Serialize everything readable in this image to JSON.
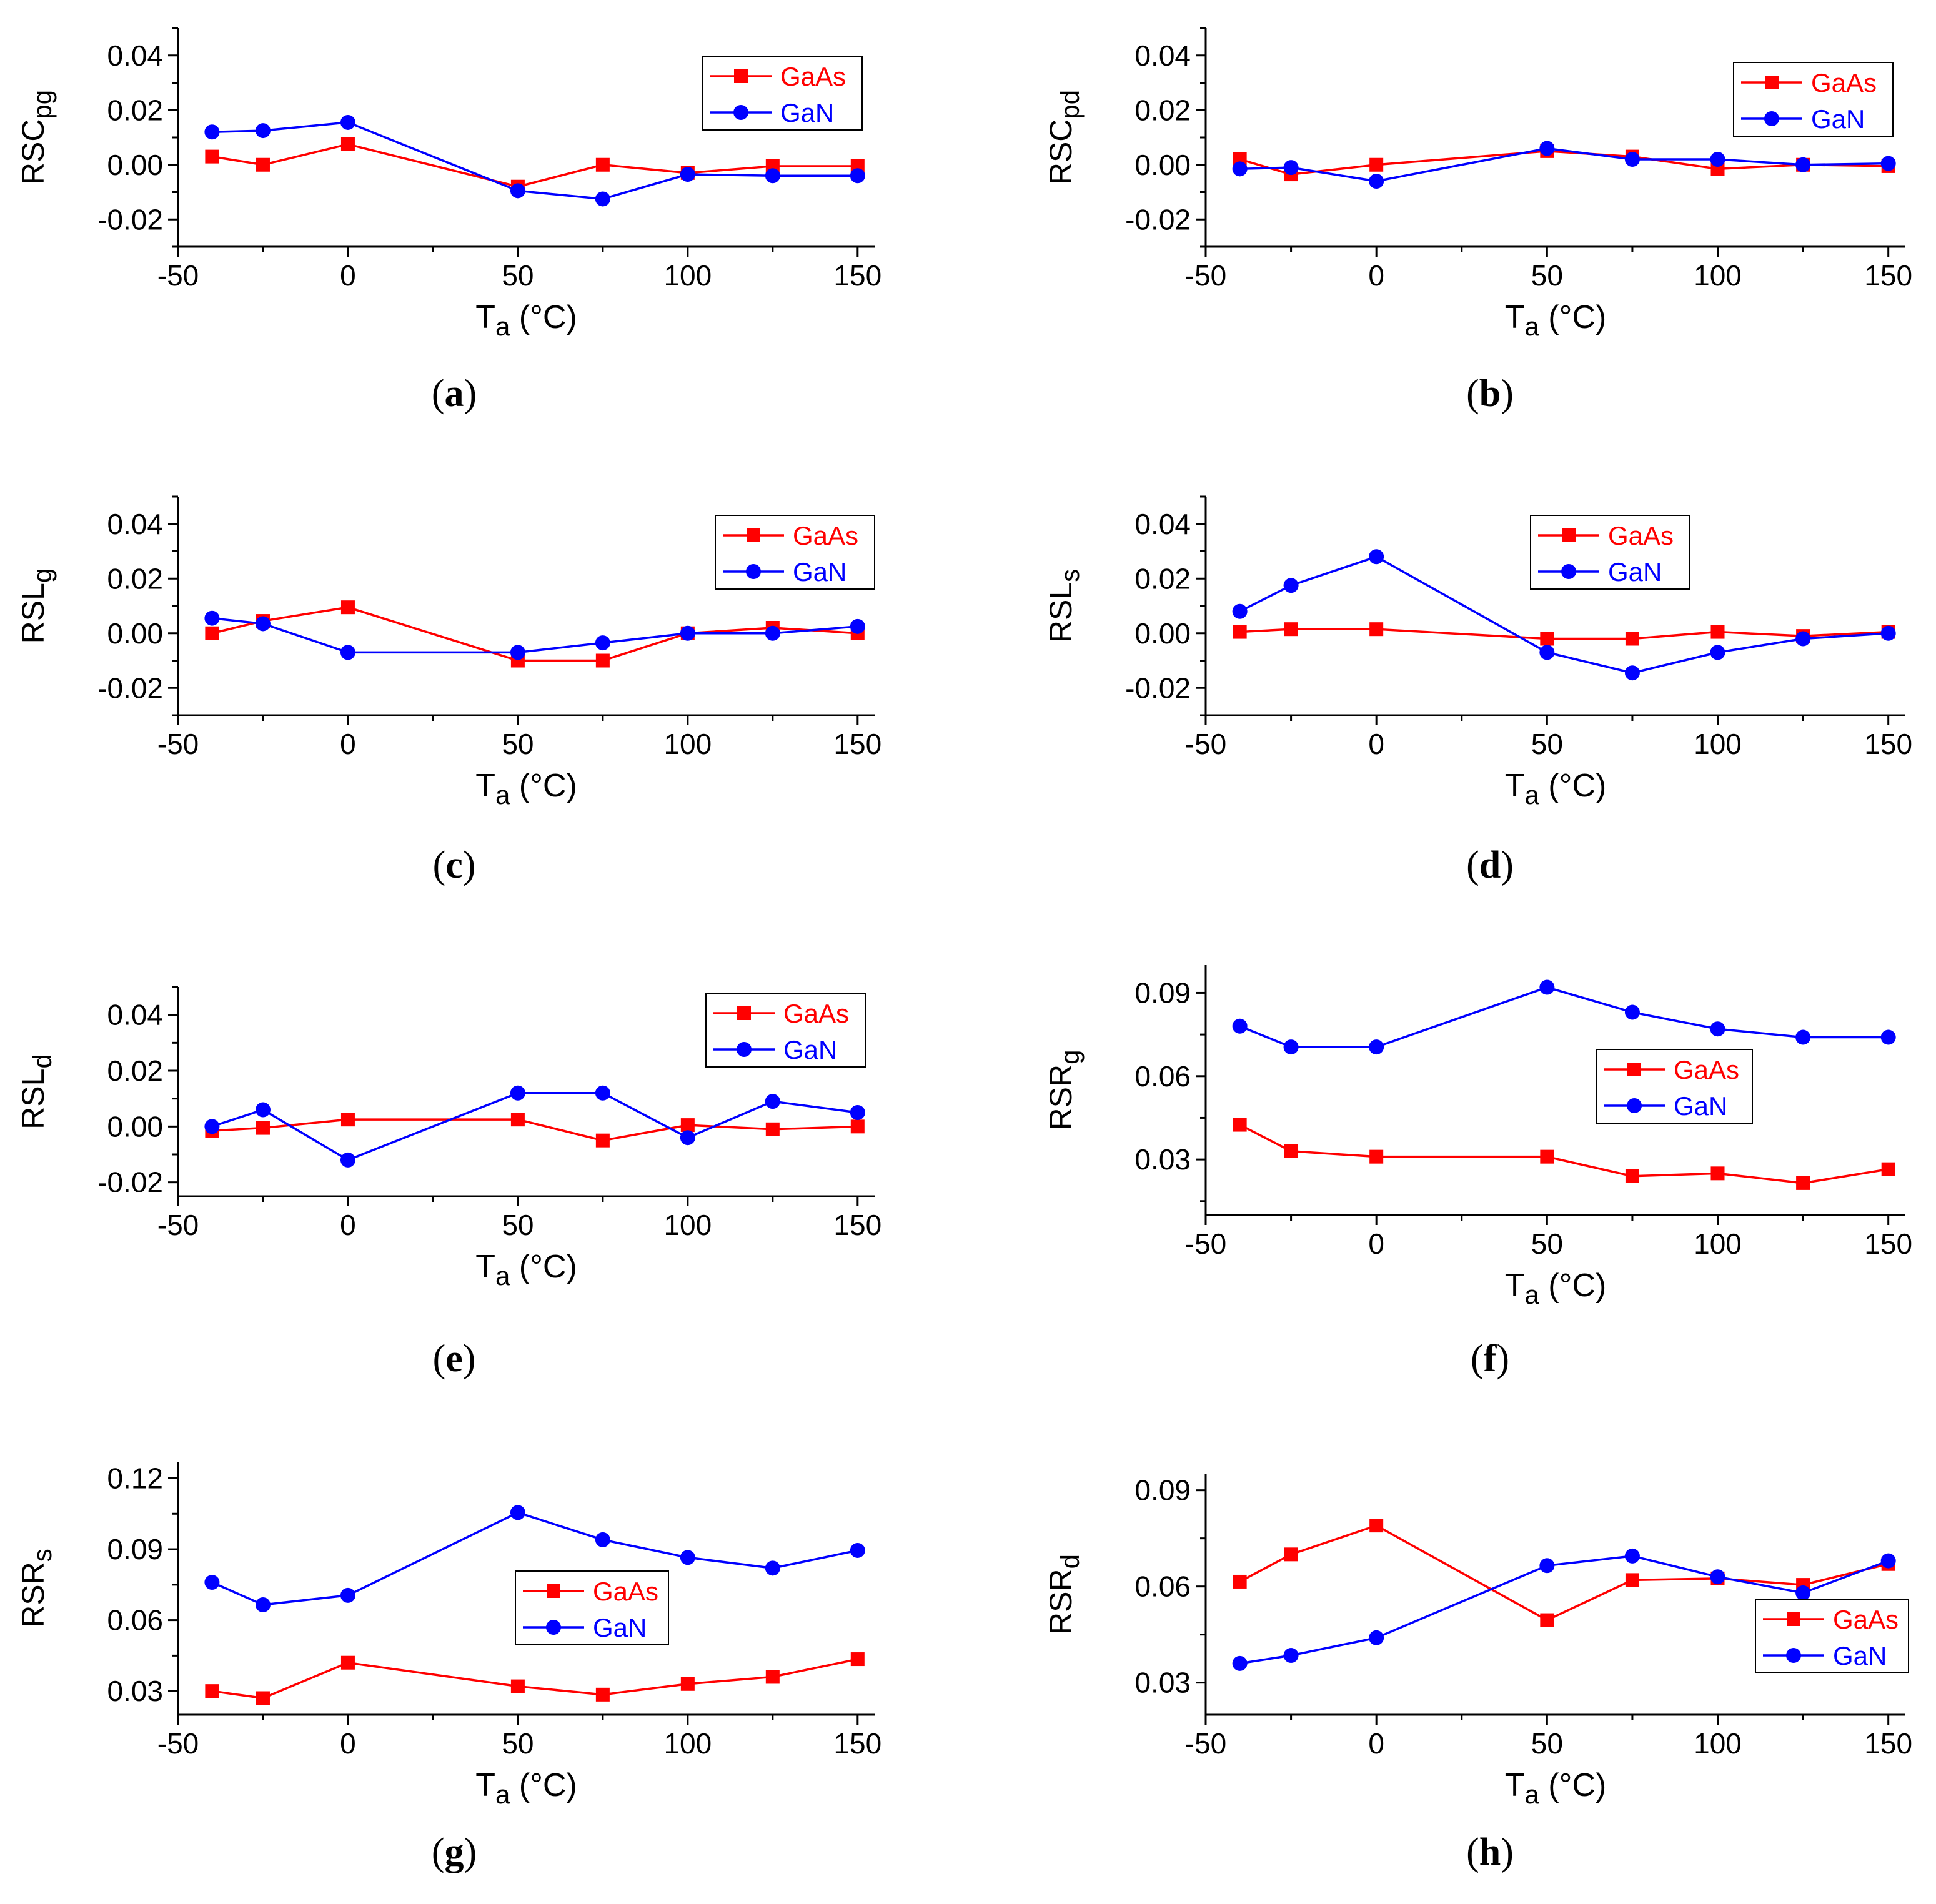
{
  "colors": {
    "GaAs": "#ff0000",
    "GaN": "#0000ff",
    "axis": "#000000"
  },
  "legend_labels": [
    "GaAs",
    "GaN"
  ],
  "chart_data": [
    {
      "type": "line",
      "panel_label": "a",
      "ylabel_base": "RSC",
      "ylabel_sub": "pg",
      "xlabel_base": "T",
      "xlabel_sub": "a",
      "xlabel_unit": " (°C)",
      "x": [
        -40,
        -25,
        0,
        50,
        75,
        100,
        125,
        150
      ],
      "xlim": [
        -50,
        155
      ],
      "xticks": [
        -50,
        0,
        50,
        100,
        150
      ],
      "ylim": [
        -0.03,
        0.05
      ],
      "yticks": [
        -0.02,
        0.0,
        0.02,
        0.04
      ],
      "ytick_labels": [
        "-0.02",
        "0.00",
        "0.02",
        "0.04"
      ],
      "legend": "top-right",
      "series": [
        {
          "name": "GaAs",
          "values": [
            0.003,
            0.0,
            0.0075,
            -0.008,
            0.0,
            -0.003,
            -0.0005,
            -0.0005
          ]
        },
        {
          "name": "GaN",
          "values": [
            0.012,
            0.0125,
            0.0155,
            -0.0095,
            -0.0125,
            -0.0035,
            -0.004,
            -0.004
          ]
        }
      ]
    },
    {
      "type": "line",
      "panel_label": "b",
      "ylabel_base": "RSC",
      "ylabel_sub": "pd",
      "xlabel_base": "T",
      "xlabel_sub": "a",
      "xlabel_unit": " (°C)",
      "x": [
        -40,
        -25,
        0,
        50,
        75,
        100,
        125,
        150
      ],
      "xlim": [
        -50,
        155
      ],
      "xticks": [
        -50,
        0,
        50,
        100,
        150
      ],
      "ylim": [
        -0.03,
        0.05
      ],
      "yticks": [
        -0.02,
        0.0,
        0.02,
        0.04
      ],
      "ytick_labels": [
        "-0.02",
        "0.00",
        "0.02",
        "0.04"
      ],
      "legend": "top-right",
      "series": [
        {
          "name": "GaAs",
          "values": [
            0.002,
            -0.0035,
            0.0,
            0.005,
            0.003,
            -0.0015,
            0.0,
            -0.0005
          ]
        },
        {
          "name": "GaN",
          "values": [
            -0.0015,
            -0.001,
            -0.006,
            0.006,
            0.002,
            0.002,
            0.0,
            0.0005
          ]
        }
      ]
    },
    {
      "type": "line",
      "panel_label": "c",
      "ylabel_base": "RSL",
      "ylabel_sub": "g",
      "xlabel_base": "T",
      "xlabel_sub": "a",
      "xlabel_unit": " (°C)",
      "x": [
        -40,
        -25,
        0,
        50,
        75,
        100,
        125,
        150
      ],
      "xlim": [
        -50,
        155
      ],
      "xticks": [
        -50,
        0,
        50,
        100,
        150
      ],
      "ylim": [
        -0.03,
        0.05
      ],
      "yticks": [
        -0.02,
        0.0,
        0.02,
        0.04
      ],
      "ytick_labels": [
        "-0.02",
        "0.00",
        "0.02",
        "0.04"
      ],
      "legend": "top-right",
      "series": [
        {
          "name": "GaAs",
          "values": [
            0.0,
            0.0045,
            0.0095,
            -0.01,
            -0.01,
            0.0,
            0.002,
            0.0
          ]
        },
        {
          "name": "GaN",
          "values": [
            0.0055,
            0.0035,
            -0.007,
            -0.007,
            -0.0035,
            0.0,
            0.0,
            0.0025
          ]
        }
      ]
    },
    {
      "type": "line",
      "panel_label": "d",
      "ylabel_base": "RSL",
      "ylabel_sub": "s",
      "xlabel_base": "T",
      "xlabel_sub": "a",
      "xlabel_unit": " (°C)",
      "x": [
        -40,
        -25,
        0,
        50,
        75,
        100,
        125,
        150
      ],
      "xlim": [
        -50,
        155
      ],
      "xticks": [
        -50,
        0,
        50,
        100,
        150
      ],
      "ylim": [
        -0.03,
        0.05
      ],
      "yticks": [
        -0.02,
        0.0,
        0.02,
        0.04
      ],
      "ytick_labels": [
        "-0.02",
        "0.00",
        "0.02",
        "0.04"
      ],
      "legend": "top-center",
      "series": [
        {
          "name": "GaAs",
          "values": [
            0.0005,
            0.0015,
            0.0015,
            -0.002,
            -0.002,
            0.0005,
            -0.001,
            0.0005
          ]
        },
        {
          "name": "GaN",
          "values": [
            0.008,
            0.0175,
            0.028,
            -0.007,
            -0.0145,
            -0.007,
            -0.002,
            0.0
          ]
        }
      ]
    },
    {
      "type": "line",
      "panel_label": "e",
      "ylabel_base": "RSL",
      "ylabel_sub": "d",
      "xlabel_base": "T",
      "xlabel_sub": "a",
      "xlabel_unit": " (°C)",
      "x": [
        -40,
        -25,
        0,
        50,
        75,
        100,
        125,
        150
      ],
      "xlim": [
        -50,
        155
      ],
      "xticks": [
        -50,
        0,
        50,
        100,
        150
      ],
      "ylim": [
        -0.025,
        0.05
      ],
      "yticks": [
        -0.02,
        0.0,
        0.02,
        0.04
      ],
      "ytick_labels": [
        "-0.02",
        "0.00",
        "0.02",
        "0.04"
      ],
      "legend": "top-right",
      "series": [
        {
          "name": "GaAs",
          "values": [
            -0.0015,
            -0.0005,
            0.0025,
            0.0025,
            -0.005,
            0.0005,
            -0.001,
            0.0
          ]
        },
        {
          "name": "GaN",
          "values": [
            0.0,
            0.006,
            -0.012,
            0.012,
            0.012,
            -0.004,
            0.009,
            0.005
          ]
        }
      ]
    },
    {
      "type": "line",
      "panel_label": "f",
      "ylabel_base": "RSR",
      "ylabel_sub": "g",
      "xlabel_base": "T",
      "xlabel_sub": "a",
      "xlabel_unit": " (°C)",
      "x": [
        -40,
        -25,
        0,
        50,
        75,
        100,
        125,
        150
      ],
      "xlim": [
        -50,
        155
      ],
      "xticks": [
        -50,
        0,
        50,
        100,
        150
      ],
      "ylim": [
        0.01,
        0.1
      ],
      "yticks": [
        0.03,
        0.06,
        0.09
      ],
      "ytick_labels": [
        "0.03",
        "0.06",
        "0.09"
      ],
      "legend": "center",
      "series": [
        {
          "name": "GaAs",
          "values": [
            0.0425,
            0.033,
            0.031,
            0.031,
            0.024,
            0.025,
            0.0215,
            0.0265
          ]
        },
        {
          "name": "GaN",
          "values": [
            0.078,
            0.0705,
            0.0705,
            0.092,
            0.083,
            0.077,
            0.074,
            0.074
          ]
        }
      ]
    },
    {
      "type": "line",
      "panel_label": "g",
      "ylabel_base": "RSR",
      "ylabel_sub": "s",
      "xlabel_base": "T",
      "xlabel_sub": "a",
      "xlabel_unit": " (°C)",
      "x": [
        -40,
        -25,
        0,
        50,
        75,
        100,
        125,
        150
      ],
      "xlim": [
        -50,
        155
      ],
      "xticks": [
        -50,
        0,
        50,
        100,
        150
      ],
      "ylim": [
        0.02,
        0.127
      ],
      "yticks": [
        0.03,
        0.06,
        0.09,
        0.12
      ],
      "ytick_labels": [
        "0.03",
        "0.06",
        "0.09",
        "0.12"
      ],
      "legend": "center",
      "series": [
        {
          "name": "GaAs",
          "values": [
            0.03,
            0.027,
            0.042,
            0.032,
            0.0285,
            0.033,
            0.036,
            0.0435
          ]
        },
        {
          "name": "GaN",
          "values": [
            0.076,
            0.0665,
            0.0705,
            0.1055,
            0.094,
            0.0865,
            0.082,
            0.0895
          ]
        }
      ]
    },
    {
      "type": "line",
      "panel_label": "h",
      "ylabel_base": "RSR",
      "ylabel_sub": "d",
      "xlabel_base": "T",
      "xlabel_sub": "a",
      "xlabel_unit": " (°C)",
      "x": [
        -40,
        -25,
        0,
        50,
        75,
        100,
        125,
        150
      ],
      "xlim": [
        -50,
        155
      ],
      "xticks": [
        -50,
        0,
        50,
        100,
        150
      ],
      "ylim": [
        0.02,
        0.095
      ],
      "yticks": [
        0.03,
        0.06,
        0.09
      ],
      "ytick_labels": [
        "0.03",
        "0.06",
        "0.09"
      ],
      "legend": "bottom-right",
      "series": [
        {
          "name": "GaAs",
          "values": [
            0.0615,
            0.07,
            0.079,
            0.0495,
            0.062,
            0.0625,
            0.0605,
            0.067
          ]
        },
        {
          "name": "GaN",
          "values": [
            0.036,
            0.0385,
            0.044,
            0.0665,
            0.0695,
            0.063,
            0.058,
            0.068
          ]
        }
      ]
    }
  ]
}
